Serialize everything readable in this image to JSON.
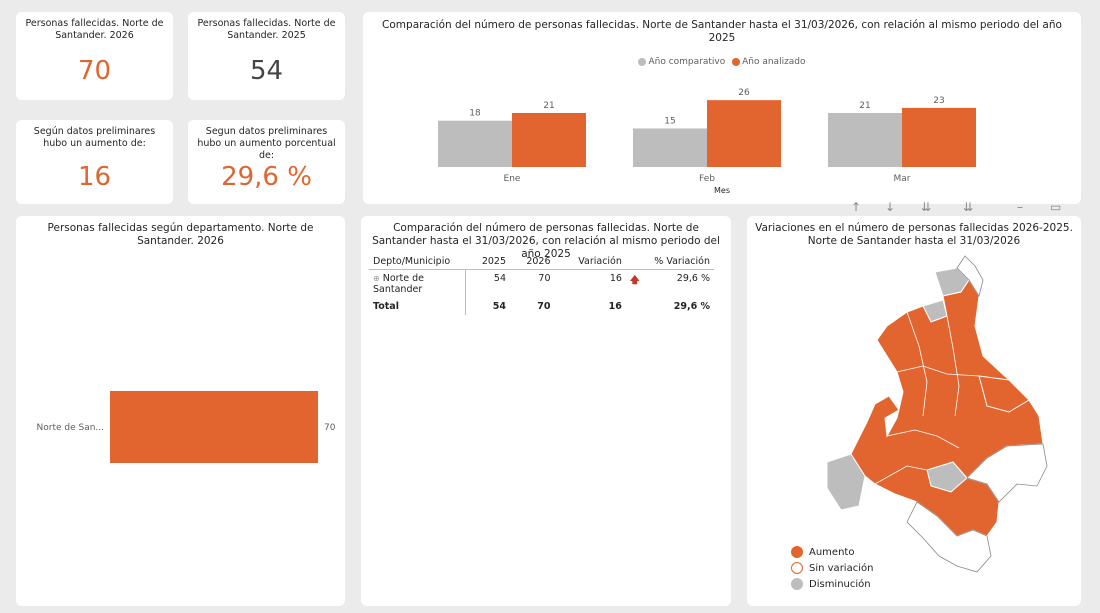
{
  "kpis": {
    "k1": {
      "title": "Personas fallecidas. Norte de Santander. 2026",
      "value": "70"
    },
    "k2": {
      "title": "Personas fallecidas. Norte de Santander. 2025",
      "value": "54"
    },
    "k3": {
      "title": "Según datos preliminares hubo un aumento de:",
      "value": "16"
    },
    "k4": {
      "title": "Segun datos preliminares hubo un aumento porcentual de:",
      "value": "29,6 %"
    }
  },
  "colors": {
    "accent": "#e2652f",
    "comparative": "#bdbdbd"
  },
  "monthly_chart": {
    "title": "Comparación del número de personas fallecidas. Norte de Santander hasta el 31/03/2026, con relación al mismo periodo del año 2025",
    "legend": {
      "comparative": "Año comparativo",
      "analyzed": "Año analizado"
    },
    "xlabel": "Mes"
  },
  "dept_chart": {
    "title": "Personas fallecidas según departamento. Norte de Santander. 2026"
  },
  "table": {
    "title": "Comparación del número de personas fallecidas. Norte de Santander hasta el 31/03/2026, con relación al mismo periodo del año 2025",
    "headers": [
      "Depto/Municipio",
      "2025",
      "2026",
      "Variación",
      "% Variación"
    ],
    "row": {
      "name": "Norte de Santander",
      "v2025": "54",
      "v2026": "70",
      "variacion": "16",
      "pct": "29,6 %"
    },
    "total": {
      "name": "Total",
      "v2025": "54",
      "v2026": "70",
      "variacion": "16",
      "pct": "29,6 %"
    }
  },
  "map": {
    "title": "Variaciones en el número de personas fallecidas 2026-2025. Norte de Santander hasta el 31/03/2026",
    "legend": {
      "increase": "Aumento",
      "nochange": "Sin variación",
      "decrease": "Disminución"
    }
  },
  "chart_data": [
    {
      "type": "bar",
      "title": "Comparación del número de personas fallecidas. Norte de Santander hasta el 31/03/2026, con relación al mismo periodo del año 2025",
      "categories": [
        "Ene",
        "Feb",
        "Mar"
      ],
      "series": [
        {
          "name": "Año comparativo",
          "values": [
            18,
            15,
            21
          ]
        },
        {
          "name": "Año analizado",
          "values": [
            21,
            26,
            23
          ]
        }
      ],
      "xlabel": "Mes",
      "ylim": [
        0,
        28
      ]
    },
    {
      "type": "bar",
      "orientation": "horizontal",
      "title": "Personas fallecidas según departamento. Norte de Santander. 2026",
      "categories": [
        "Norte de San..."
      ],
      "values": [
        70
      ],
      "xlim": [
        0,
        70
      ]
    }
  ]
}
